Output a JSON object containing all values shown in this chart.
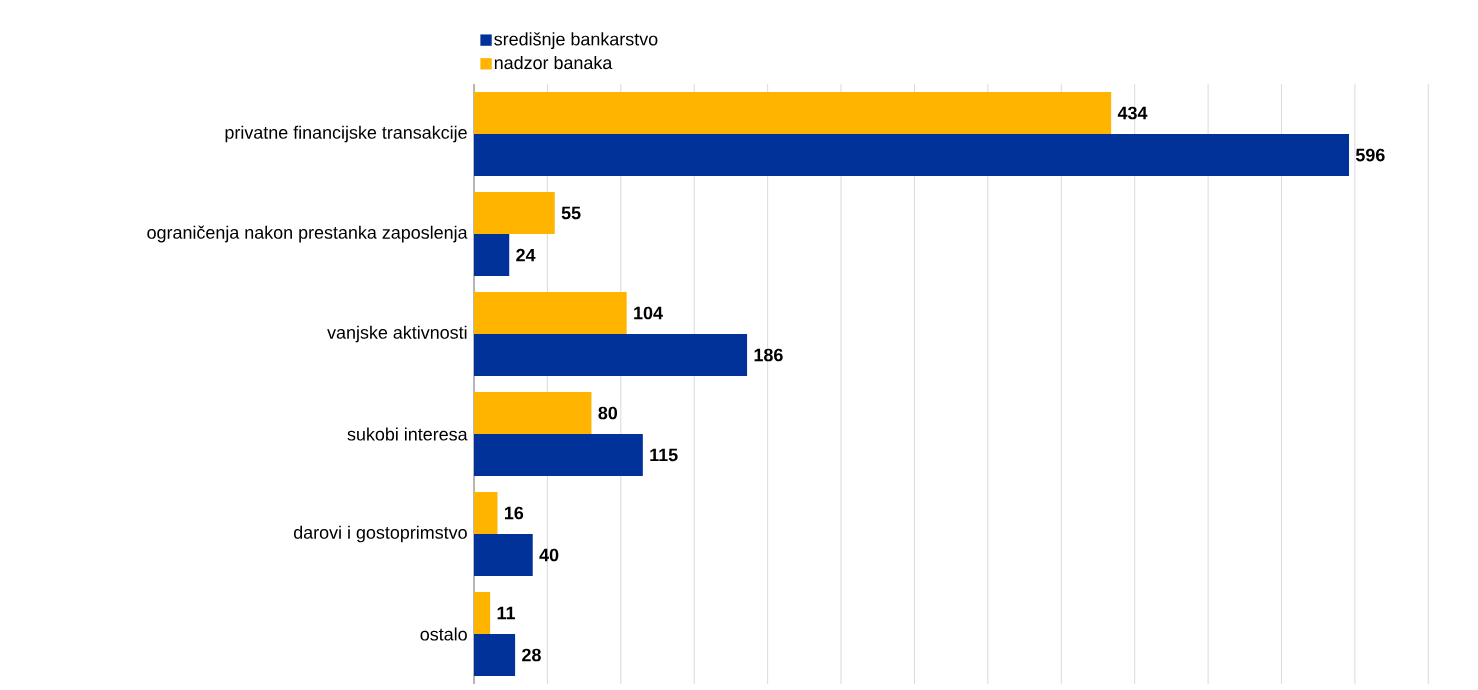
{
  "chart_data": {
    "type": "bar",
    "orientation": "horizontal",
    "categories": [
      "privatne financijske transakcije",
      "ograničenja nakon prestanka zaposlenja",
      "vanjske aktivnosti",
      "sukobi interesa",
      "darovi i gostoprimstvo",
      "ostalo"
    ],
    "series": [
      {
        "name": "središnje bankarstvo",
        "color": "#003299",
        "values": [
          596,
          24,
          186,
          115,
          40,
          28
        ]
      },
      {
        "name": "nadzor banaka",
        "color": "#ffb400",
        "values": [
          434,
          55,
          104,
          80,
          16,
          11
        ]
      }
    ],
    "grid": "x",
    "legend": "top",
    "data_labels": true,
    "tick_labels": "y"
  }
}
